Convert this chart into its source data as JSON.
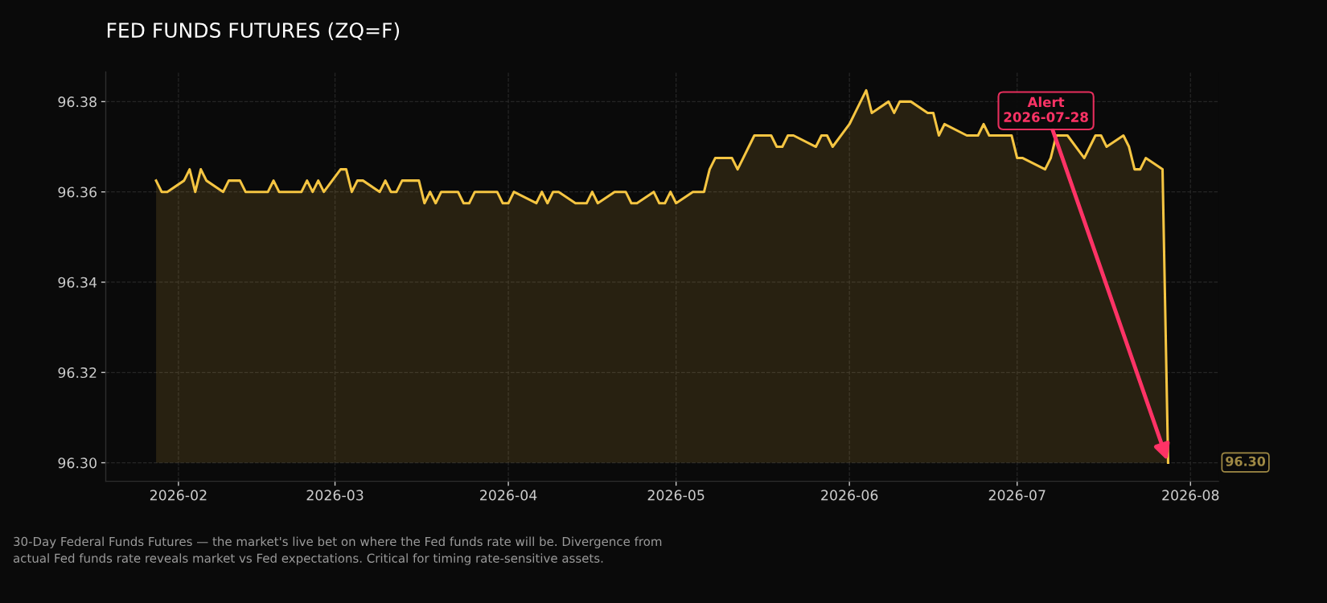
{
  "chart_data": {
    "type": "area",
    "title": "FED FUNDS FUTURES (ZQ=F)",
    "x": [
      "2026-01-28",
      "2026-01-29",
      "2026-01-30",
      "2026-02-02",
      "2026-02-03",
      "2026-02-04",
      "2026-02-05",
      "2026-02-06",
      "2026-02-09",
      "2026-02-10",
      "2026-02-11",
      "2026-02-12",
      "2026-02-13",
      "2026-02-17",
      "2026-02-18",
      "2026-02-19",
      "2026-02-20",
      "2026-02-23",
      "2026-02-24",
      "2026-02-25",
      "2026-02-26",
      "2026-02-27",
      "2026-03-02",
      "2026-03-03",
      "2026-03-04",
      "2026-03-05",
      "2026-03-06",
      "2026-03-09",
      "2026-03-10",
      "2026-03-11",
      "2026-03-12",
      "2026-03-13",
      "2026-03-16",
      "2026-03-17",
      "2026-03-18",
      "2026-03-19",
      "2026-03-20",
      "2026-03-23",
      "2026-03-24",
      "2026-03-25",
      "2026-03-26",
      "2026-03-27",
      "2026-03-30",
      "2026-03-31",
      "2026-04-01",
      "2026-04-02",
      "2026-04-06",
      "2026-04-07",
      "2026-04-08",
      "2026-04-09",
      "2026-04-10",
      "2026-04-13",
      "2026-04-14",
      "2026-04-15",
      "2026-04-16",
      "2026-04-17",
      "2026-04-20",
      "2026-04-21",
      "2026-04-22",
      "2026-04-23",
      "2026-04-24",
      "2026-04-27",
      "2026-04-28",
      "2026-04-29",
      "2026-04-30",
      "2026-05-01",
      "2026-05-04",
      "2026-05-05",
      "2026-05-06",
      "2026-05-07",
      "2026-05-08",
      "2026-05-11",
      "2026-05-12",
      "2026-05-13",
      "2026-05-14",
      "2026-05-15",
      "2026-05-18",
      "2026-05-19",
      "2026-05-20",
      "2026-05-21",
      "2026-05-22",
      "2026-05-26",
      "2026-05-27",
      "2026-05-28",
      "2026-05-29",
      "2026-06-01",
      "2026-06-02",
      "2026-06-03",
      "2026-06-04",
      "2026-06-05",
      "2026-06-08",
      "2026-06-09",
      "2026-06-10",
      "2026-06-11",
      "2026-06-12",
      "2026-06-15",
      "2026-06-16",
      "2026-06-17",
      "2026-06-18",
      "2026-06-22",
      "2026-06-23",
      "2026-06-24",
      "2026-06-25",
      "2026-06-26",
      "2026-06-29",
      "2026-06-30",
      "2026-07-01",
      "2026-07-02",
      "2026-07-06",
      "2026-07-07",
      "2026-07-08",
      "2026-07-09",
      "2026-07-10",
      "2026-07-13",
      "2026-07-14",
      "2026-07-15",
      "2026-07-16",
      "2026-07-17",
      "2026-07-20",
      "2026-07-21",
      "2026-07-22",
      "2026-07-23",
      "2026-07-24",
      "2026-07-27",
      "2026-07-28"
    ],
    "series": [
      {
        "color": "#f5c542",
        "values": [
          96.3625,
          96.36,
          96.36,
          96.3625,
          96.365,
          96.36,
          96.365,
          96.3625,
          96.36,
          96.3625,
          96.3625,
          96.3625,
          96.36,
          96.36,
          96.3625,
          96.36,
          96.36,
          96.36,
          96.3625,
          96.36,
          96.3625,
          96.36,
          96.365,
          96.365,
          96.36,
          96.3625,
          96.3625,
          96.36,
          96.3625,
          96.36,
          96.36,
          96.3625,
          96.3625,
          96.3575,
          96.36,
          96.3575,
          96.36,
          96.36,
          96.3575,
          96.3575,
          96.36,
          96.36,
          96.36,
          96.3575,
          96.3575,
          96.36,
          96.3575,
          96.36,
          96.3575,
          96.36,
          96.36,
          96.3575,
          96.3575,
          96.3575,
          96.36,
          96.3575,
          96.36,
          96.36,
          96.36,
          96.3575,
          96.3575,
          96.36,
          96.3575,
          96.3575,
          96.36,
          96.3575,
          96.36,
          96.36,
          96.36,
          96.365,
          96.3675,
          96.3675,
          96.365,
          96.3675,
          96.37,
          96.3725,
          96.3725,
          96.37,
          96.37,
          96.3725,
          96.3725,
          96.37,
          96.3725,
          96.3725,
          96.37,
          96.375,
          96.3775,
          96.38,
          96.3825,
          96.3775,
          96.38,
          96.3775,
          96.38,
          96.38,
          96.38,
          96.3775,
          96.3775,
          96.3725,
          96.375,
          96.3725,
          96.3725,
          96.3725,
          96.375,
          96.3725,
          96.3725,
          96.3725,
          96.3675,
          96.3675,
          96.365,
          96.3675,
          96.3725,
          96.3725,
          96.3725,
          96.3675,
          96.37,
          96.3725,
          96.3725,
          96.37,
          96.3725,
          96.37,
          96.365,
          96.365,
          96.3675,
          96.365,
          96.3
        ]
      }
    ],
    "xlim": [
      "2026-01-19",
      "2026-08-06"
    ],
    "xticks": [
      "2026-02",
      "2026-03",
      "2026-04",
      "2026-05",
      "2026-06",
      "2026-07",
      "2026-08"
    ],
    "ylim": [
      96.2959,
      96.3866
    ],
    "yticks": [
      {
        "value": 96.3,
        "label": "96.30"
      },
      {
        "value": 96.32,
        "label": "96.32"
      },
      {
        "value": 96.34,
        "label": "96.34"
      },
      {
        "value": 96.36,
        "label": "96.36"
      },
      {
        "value": 96.38,
        "label": "96.38"
      }
    ],
    "grid": true,
    "line_style": "solid",
    "annotations": [
      {
        "text": "Alert\n2026-07-28",
        "x": "2026-07-28",
        "y": 96.3
      },
      "96.30",
      "30-Day Federal Funds Futures — the market's live bet on where the Fed funds rate will be. Divergence from\nactual Fed funds rate reveals market vs Fed expectations. Critical for timing rate-sensitive assets."
    ]
  }
}
